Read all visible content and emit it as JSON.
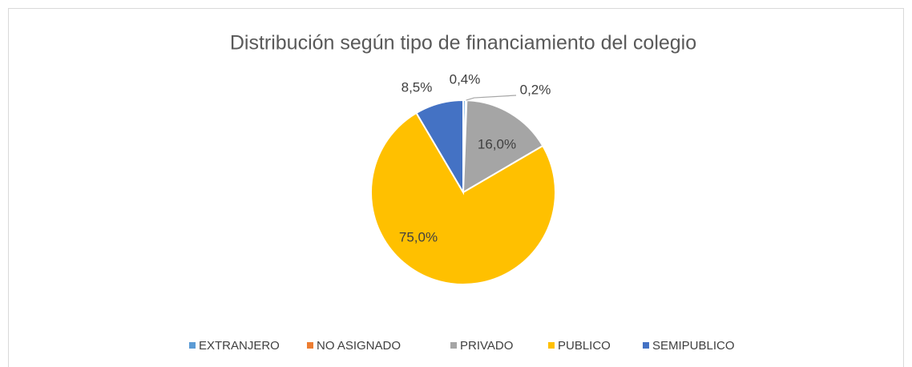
{
  "chart_data": {
    "type": "pie",
    "title": "Distribución según tipo de financiamiento del colegio",
    "categories": [
      "EXTRANJERO",
      "NO ASIGNADO",
      "PRIVADO",
      "PUBLICO",
      "SEMIPUBLICO"
    ],
    "values": [
      0.4,
      0.2,
      16.0,
      75.0,
      8.5
    ],
    "value_labels": [
      "0,4%",
      "0,2%",
      "16,0%",
      "75,0%",
      "8,5%"
    ],
    "colors": [
      "#5b9bd5",
      "#ed7d31",
      "#a5a5a5",
      "#ffc000",
      "#4472c4"
    ],
    "legend": "bottom"
  }
}
